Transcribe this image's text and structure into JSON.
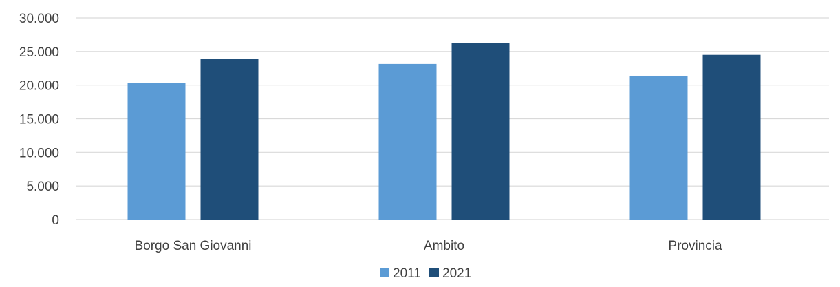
{
  "chart_data": {
    "type": "bar",
    "title": "",
    "xlabel": "",
    "ylabel": "",
    "categories": [
      "Borgo San Giovanni",
      "Ambito",
      "Provincia"
    ],
    "series": [
      {
        "name": "2011",
        "color": "#5b9bd5",
        "values": [
          20300,
          23150,
          21400
        ]
      },
      {
        "name": "2021",
        "color": "#1f4e79",
        "values": [
          23900,
          26300,
          24500
        ]
      }
    ],
    "ylim": [
      0,
      30000
    ],
    "yticks": [
      0,
      5000,
      10000,
      15000,
      20000,
      25000,
      30000
    ],
    "ytick_labels": [
      "0",
      "5.000",
      "10.000",
      "15.000",
      "20.000",
      "25.000",
      "30.000"
    ],
    "grid": true,
    "legend_position": "bottom"
  }
}
